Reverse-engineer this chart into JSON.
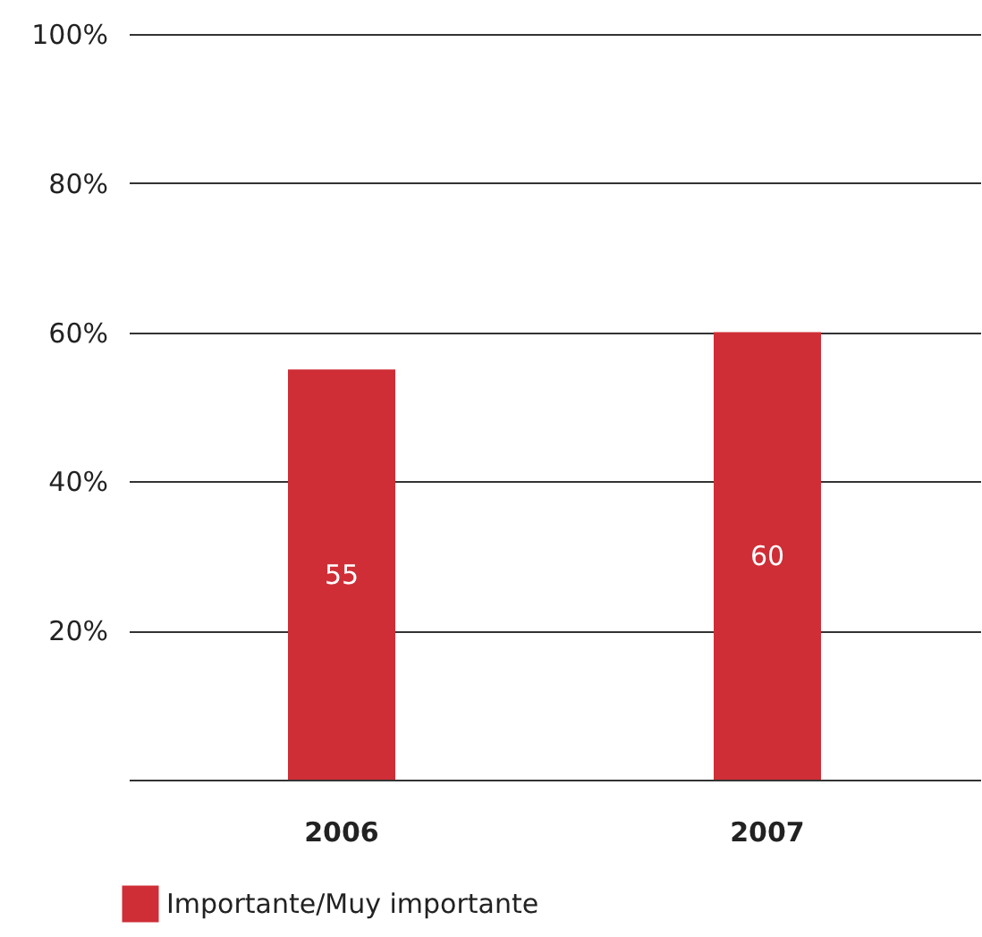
{
  "chart_data": {
    "type": "bar",
    "categories": [
      "2006",
      "2007"
    ],
    "series": [
      {
        "name": "Importante/Muy importante",
        "color": "#cf2e36",
        "values": [
          55,
          60
        ]
      }
    ],
    "ylim": [
      0,
      100
    ],
    "yticks": [
      {
        "value": 0,
        "label": null
      },
      {
        "value": 20,
        "label": "20%"
      },
      {
        "value": 40,
        "label": "40%"
      },
      {
        "value": 60,
        "label": "60%"
      },
      {
        "value": 80,
        "label": "80%"
      },
      {
        "value": 100,
        "label": "100%"
      }
    ],
    "grid": "y",
    "legend": "bottom",
    "data_labels": true
  }
}
